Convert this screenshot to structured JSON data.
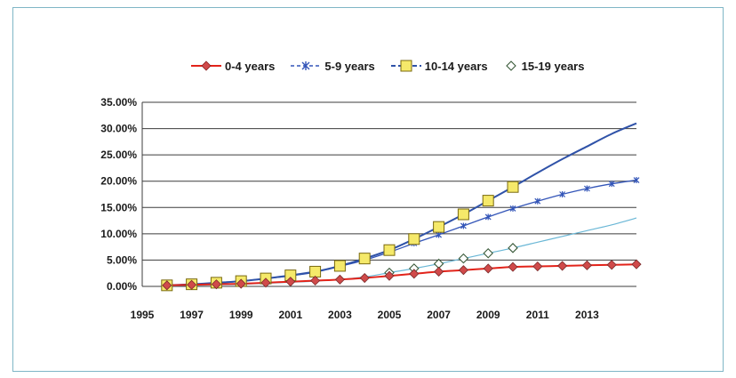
{
  "chart_data": {
    "type": "line",
    "title": "",
    "xlabel": "",
    "ylabel": "",
    "ylim": [
      0,
      35
    ],
    "xlim": [
      1995,
      2015
    ],
    "y_ticks": [
      0,
      5,
      10,
      15,
      20,
      25,
      30,
      35
    ],
    "y_tick_labels": [
      "0.00%",
      "5.00%",
      "10.00%",
      "15.00%",
      "20.00%",
      "25.00%",
      "30.00%",
      "35.00%"
    ],
    "x_tick_labels": [
      "1995",
      "1997",
      "1999",
      "2001",
      "2003",
      "2005",
      "2007",
      "2009",
      "2011",
      "2013"
    ],
    "grid": "horizontal",
    "legend_position": "top",
    "series": [
      {
        "name": "0-4 years",
        "color": "#e2231a",
        "marker": "diamond",
        "marker_color": "#d04a4a",
        "x": [
          1996,
          1997,
          1998,
          1999,
          2000,
          2001,
          2002,
          2003,
          2004,
          2005,
          2006,
          2007,
          2008,
          2009,
          2010,
          2011,
          2012,
          2013,
          2014,
          2015
        ],
        "values": [
          0.2,
          0.3,
          0.4,
          0.5,
          0.7,
          0.9,
          1.1,
          1.3,
          1.6,
          2.0,
          2.4,
          2.8,
          3.1,
          3.4,
          3.7,
          3.8,
          3.9,
          4.0,
          4.1,
          4.2
        ],
        "marker_x": [
          1996,
          1997,
          1998,
          1999,
          2000,
          2001,
          2002,
          2003,
          2004,
          2005,
          2006,
          2007,
          2008,
          2009,
          2010,
          2011,
          2012,
          2013,
          2014,
          2015
        ]
      },
      {
        "name": "5-9 years",
        "color": "#3355b8",
        "marker": "star",
        "marker_color": "#3355b8",
        "x": [
          1996,
          1997,
          1998,
          1999,
          2000,
          2001,
          2002,
          2003,
          2004,
          2005,
          2006,
          2007,
          2008,
          2009,
          2010,
          2011,
          2012,
          2013,
          2014,
          2015
        ],
        "values": [
          0.2,
          0.4,
          0.6,
          1.0,
          1.5,
          2.0,
          2.7,
          3.8,
          5.0,
          6.5,
          8.2,
          9.8,
          11.5,
          13.2,
          14.8,
          16.2,
          17.5,
          18.6,
          19.5,
          20.2
        ],
        "marker_x": [
          1996,
          1997,
          1998,
          1999,
          2000,
          2001,
          2002,
          2003,
          2004,
          2005,
          2006,
          2007,
          2008,
          2009,
          2010,
          2011,
          2012,
          2013,
          2014,
          2015
        ]
      },
      {
        "name": "10-14 years",
        "color": "#2f52a8",
        "marker": "square",
        "marker_color": "#f5e96a",
        "x": [
          1996,
          1997,
          1998,
          1999,
          2000,
          2001,
          2002,
          2003,
          2004,
          2005,
          2006,
          2007,
          2008,
          2009,
          2010,
          2011,
          2012,
          2013,
          2014,
          2015
        ],
        "values": [
          0.2,
          0.4,
          0.7,
          1.0,
          1.5,
          2.1,
          2.8,
          3.9,
          5.3,
          6.9,
          9.0,
          11.3,
          13.7,
          16.3,
          18.9,
          21.6,
          24.2,
          26.6,
          29.0,
          31.0
        ],
        "marker_x": [
          1996,
          1997,
          1998,
          1999,
          2000,
          2001,
          2002,
          2003,
          2004,
          2005,
          2006,
          2007,
          2008,
          2009,
          2010
        ]
      },
      {
        "name": "15-19 years",
        "color": "#6ab7d6",
        "marker": "diamond-open",
        "marker_color": "#ffffff",
        "x": [
          1996,
          1997,
          1998,
          1999,
          2000,
          2001,
          2002,
          2003,
          2004,
          2005,
          2006,
          2007,
          2008,
          2009,
          2010,
          2011,
          2012,
          2013,
          2014,
          2015
        ],
        "values": [
          0.1,
          0.2,
          0.3,
          0.4,
          0.6,
          0.8,
          1.0,
          1.3,
          1.8,
          2.6,
          3.4,
          4.3,
          5.3,
          6.3,
          7.3,
          8.4,
          9.5,
          10.6,
          11.7,
          13.0
        ],
        "marker_x": [
          2005,
          2006,
          2007,
          2008,
          2009,
          2010
        ]
      }
    ]
  }
}
